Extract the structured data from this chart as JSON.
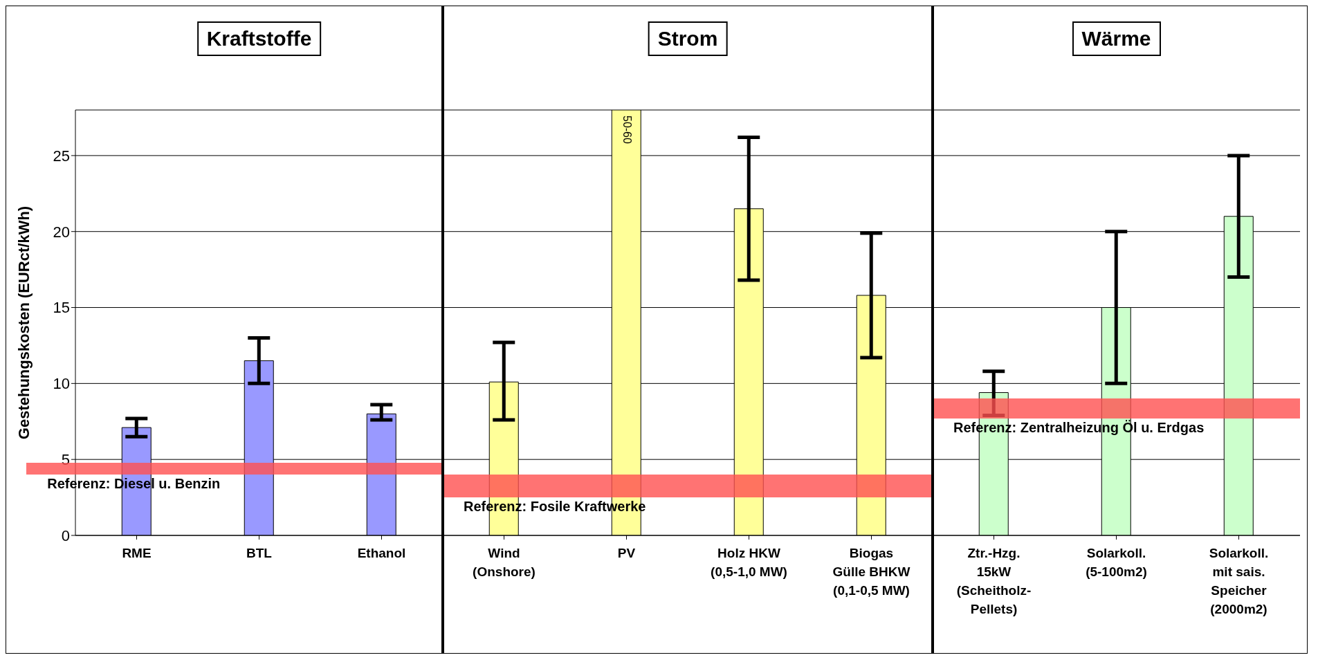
{
  "chart_data": {
    "type": "bar",
    "ylabel": "Gestehungskosten (EURct/kWh)",
    "categories": [
      "RME",
      "BTL",
      "Ethanol",
      "Wind\n(Onshore)",
      "PV",
      "Holz HKW\n(0,5-1,0 MW)",
      "Biogas\nGülle BHKW\n(0,1-0,5 MW)",
      "Ztr.-Hzg.\n15kW\n(Scheitholz-\nPellets)",
      "Solarkoll.\n(5-100m2)",
      "Solarkoll.\nmit sais.\nSpeicher\n(2000m2)"
    ],
    "values": [
      7.1,
      11.5,
      8.0,
      10.1,
      28,
      21.5,
      15.8,
      9.4,
      15,
      21
    ],
    "colors": [
      "#9999ff",
      "#9999ff",
      "#9999ff",
      "#ffff99",
      "#ffff99",
      "#ffff99",
      "#ffff99",
      "#ccffcc",
      "#ccffcc",
      "#ccffcc"
    ],
    "errors": [
      [
        6.5,
        7.7
      ],
      [
        10,
        13
      ],
      [
        7.6,
        8.6
      ],
      [
        7.6,
        12.7
      ],
      null,
      [
        16.8,
        26.2
      ],
      [
        11.7,
        19.9
      ],
      [
        7.9,
        10.8
      ],
      [
        10,
        20
      ],
      [
        17,
        25
      ]
    ],
    "value_labels": [
      null,
      null,
      null,
      null,
      "50-60",
      null,
      null,
      null,
      null,
      null
    ],
    "ylim": [
      0,
      28
    ],
    "yticks": [
      0,
      5,
      10,
      15,
      20,
      25
    ],
    "grid": "y",
    "legend": false,
    "bands": [
      {
        "axis": "y",
        "from": 4.0,
        "to": 4.8,
        "label": "Referenz: Diesel u. Benzin",
        "color": "#ff5050"
      },
      {
        "axis": "y",
        "from": 2.5,
        "to": 4.0,
        "label": "Referenz: Fosile Kraftwerke",
        "color": "#ff5050"
      },
      {
        "axis": "y",
        "from": 7.7,
        "to": 9.0,
        "label": "Referenz: Zentralheizung Öl u. Erdgas",
        "color": "#ff5050"
      }
    ],
    "annotations": [
      "Kraftstoffe",
      "Strom",
      "Wärme"
    ]
  }
}
